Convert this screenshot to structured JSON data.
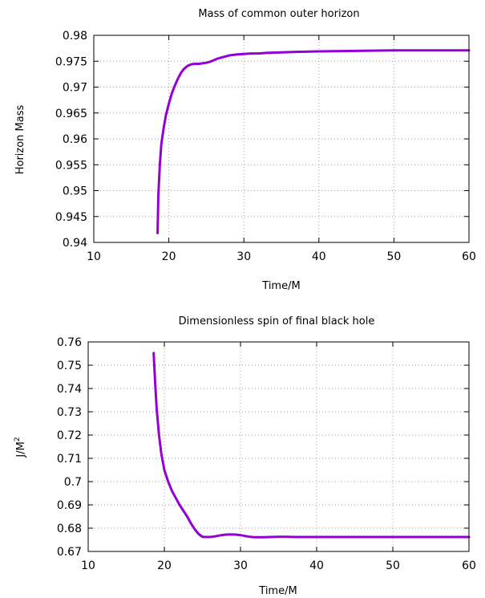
{
  "colors": {
    "curve": "#9400d3"
  },
  "chart_data": [
    {
      "type": "line",
      "title": "Mass of common outer horizon",
      "xlabel": "Time/M",
      "ylabel": "Horizon Mass",
      "xlim": [
        10,
        60
      ],
      "ylim": [
        0.94,
        0.98
      ],
      "xticks": [
        10,
        20,
        30,
        40,
        50,
        60
      ],
      "xtick_labels": [
        "10",
        "20",
        "30",
        "40",
        "50",
        "60"
      ],
      "yticks": [
        0.94,
        0.945,
        0.95,
        0.955,
        0.96,
        0.965,
        0.97,
        0.975,
        0.98
      ],
      "ytick_labels": [
        "0.94",
        "0.945",
        "0.95",
        "0.955",
        "0.96",
        "0.965",
        "0.97",
        "0.975",
        "0.98"
      ],
      "grid": true,
      "series": [
        {
          "x": [
            18.5,
            18.6,
            18.8,
            19.0,
            19.3,
            19.6,
            20.0,
            20.4,
            20.8,
            21.2,
            21.6,
            22.0,
            22.5,
            23.0,
            23.5,
            24.0,
            24.5,
            25.0,
            25.5,
            26.0,
            26.5,
            27.0,
            27.5,
            28.0,
            28.5,
            29.0,
            30.0,
            31.0,
            32.0,
            33.0,
            35.0,
            37.0,
            40.0,
            45.0,
            50.0,
            55.0,
            60.0
          ],
          "y": [
            0.9418,
            0.949,
            0.955,
            0.959,
            0.962,
            0.9645,
            0.9668,
            0.9688,
            0.9703,
            0.9716,
            0.9727,
            0.9735,
            0.9741,
            0.9744,
            0.9745,
            0.9745,
            0.9746,
            0.9747,
            0.9749,
            0.9752,
            0.9755,
            0.9757,
            0.9759,
            0.9761,
            0.9762,
            0.9763,
            0.9764,
            0.9765,
            0.9765,
            0.9766,
            0.9767,
            0.9768,
            0.9769,
            0.977,
            0.9771,
            0.9771,
            0.9771
          ]
        }
      ]
    },
    {
      "type": "line",
      "title": "Dimensionless spin of final black hole",
      "xlabel": "Time/M",
      "ylabel": "J/M",
      "ylabel_sup": "2",
      "xlim": [
        10,
        60
      ],
      "ylim": [
        0.67,
        0.76
      ],
      "xticks": [
        10,
        20,
        30,
        40,
        50,
        60
      ],
      "xtick_labels": [
        "10",
        "20",
        "30",
        "40",
        "50",
        "60"
      ],
      "yticks": [
        0.67,
        0.68,
        0.69,
        0.7,
        0.71,
        0.72,
        0.73,
        0.74,
        0.75,
        0.76
      ],
      "ytick_labels": [
        "0.67",
        "0.68",
        "0.69",
        "0.7",
        "0.71",
        "0.72",
        "0.73",
        "0.74",
        "0.75",
        "0.76"
      ],
      "grid": true,
      "series": [
        {
          "x": [
            18.6,
            18.8,
            19.0,
            19.3,
            19.6,
            20.0,
            20.5,
            21.0,
            21.5,
            22.0,
            22.5,
            23.0,
            23.5,
            24.0,
            24.5,
            25.0,
            25.5,
            26.0,
            26.5,
            27.0,
            27.5,
            28.0,
            28.5,
            29.0,
            29.5,
            30.0,
            30.5,
            31.0,
            31.5,
            32.0,
            33.0,
            34.0,
            35.0,
            36.0,
            37.0,
            38.0,
            40.0,
            45.0,
            50.0,
            55.0,
            60.0
          ],
          "y": [
            0.7552,
            0.742,
            0.731,
            0.72,
            0.712,
            0.705,
            0.7,
            0.696,
            0.693,
            0.69,
            0.6875,
            0.685,
            0.682,
            0.6795,
            0.6775,
            0.6763,
            0.6762,
            0.6762,
            0.6764,
            0.6767,
            0.677,
            0.6772,
            0.6773,
            0.6773,
            0.6772,
            0.677,
            0.6767,
            0.6764,
            0.6762,
            0.6761,
            0.6761,
            0.6762,
            0.6763,
            0.6763,
            0.6762,
            0.6762,
            0.6762,
            0.6762,
            0.6762,
            0.6762,
            0.6762
          ]
        }
      ]
    }
  ]
}
